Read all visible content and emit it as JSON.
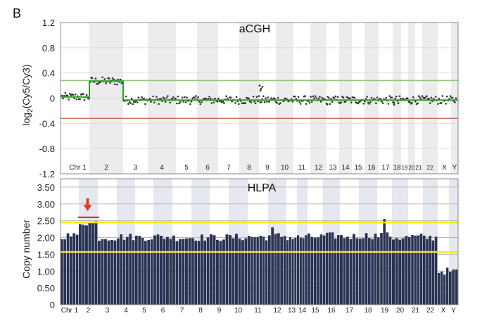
{
  "panel_label": "B",
  "chart_data": [
    {
      "type": "scatter",
      "title": "aCGH",
      "ylabel_main": "log",
      "ylabel_sub": "2",
      "ylabel_rest": "(Cy5/Cy3)",
      "ylim": [
        -1.2,
        1.2
      ],
      "yticks": [
        "1.2",
        "0.8",
        "0.4",
        "0",
        "-0.4",
        "-0.8",
        "-1.2"
      ],
      "ytick_values": [
        1.2,
        0.8,
        0.4,
        0,
        -0.4,
        -0.8,
        -1.2
      ],
      "threshold_upper": 0.28,
      "threshold_lower": -0.32,
      "threshold_upper_color": "#8fc97a",
      "threshold_lower_color": "#b5452d",
      "segment_color": "#2e9e2e",
      "point_color": "#333333",
      "band_color": "#ececec",
      "chromosomes": [
        "Chr 1",
        "2",
        "3",
        "4",
        "5",
        "6",
        "7",
        "8",
        "9",
        "10",
        "11",
        "12",
        "13",
        "14",
        "15",
        "16",
        "17",
        "18",
        "19",
        "20",
        "21",
        "22",
        "X",
        "Y"
      ],
      "segments": [
        {
          "chromosome": "Chr 1",
          "mean": 0.02
        },
        {
          "chromosome": "2",
          "mean": 0.27
        },
        {
          "chromosome": "3-Y",
          "mean": -0.03
        }
      ]
    },
    {
      "type": "bar",
      "title": "HLPA",
      "ylabel": "Copy number",
      "ylim": [
        0,
        3.75
      ],
      "yticks": [
        "3.50",
        "3.00",
        "2.50",
        "2.00",
        "1.50",
        "1.00",
        "0.50",
        "0"
      ],
      "ytick_values": [
        3.5,
        3.0,
        2.5,
        2.0,
        1.5,
        1.0,
        0.5,
        0
      ],
      "threshold_upper": 2.45,
      "threshold_lower": 1.57,
      "threshold_color": "#f5e91c",
      "bar_color": "#2a3352",
      "band_color": "#e6e8f0",
      "arrow_color": "#e03a1e",
      "chromosomes": [
        "Chr 1",
        "2",
        "3",
        "4",
        "5",
        "6",
        "7",
        "8",
        "9",
        "10",
        "11",
        "12",
        "13",
        "14",
        "15",
        "16",
        "17",
        "18",
        "19",
        "20",
        "21",
        "22",
        "X",
        "Y"
      ],
      "chromosome_mean_copy_number": [
        2.05,
        2.45,
        2.0,
        2.02,
        2.01,
        2.02,
        2.0,
        2.0,
        2.0,
        2.01,
        2.02,
        2.05,
        2.0,
        2.0,
        2.02,
        2.05,
        2.03,
        2.06,
        2.05,
        2.0,
        2.02,
        2.0,
        1.0,
        0.98
      ]
    }
  ]
}
